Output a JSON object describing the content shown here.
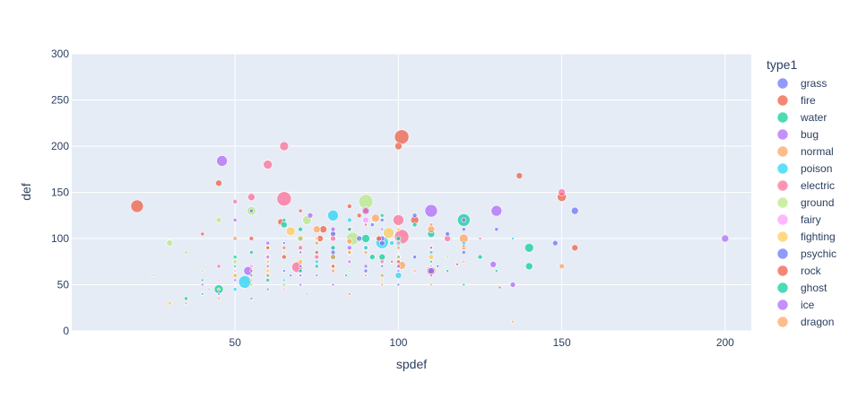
{
  "chart_data": {
    "type": "scatter",
    "xlabel": "spdef",
    "ylabel": "def",
    "xlim": [
      0,
      208
    ],
    "ylim": [
      0,
      300
    ],
    "x_ticks": [
      50,
      100,
      150,
      200
    ],
    "y_ticks": [
      0,
      50,
      100,
      150,
      200,
      250,
      300
    ],
    "grid": true,
    "legend_title": "type1",
    "legend_position": "right",
    "series": [
      {
        "name": "grass",
        "color": "#636efa",
        "points": [
          [
            55,
            130,
            4
          ],
          [
            80,
            105,
            6
          ],
          [
            90,
            130,
            9
          ],
          [
            105,
            125,
            5
          ],
          [
            130,
            110,
            4
          ],
          [
            154,
            130,
            8
          ],
          [
            65,
            65,
            3
          ],
          [
            70,
            85,
            3
          ],
          [
            85,
            75,
            5
          ],
          [
            95,
            95,
            6
          ],
          [
            100,
            80,
            4
          ],
          [
            110,
            65,
            7
          ],
          [
            115,
            105,
            5
          ],
          [
            60,
            80,
            3
          ],
          [
            75,
            95,
            4
          ],
          [
            120,
            85,
            4
          ],
          [
            88,
            100,
            6
          ],
          [
            50,
            55,
            3
          ],
          [
            42,
            45,
            2
          ],
          [
            67,
            60,
            3
          ],
          [
            72,
            40,
            2
          ],
          [
            95,
            70,
            3
          ],
          [
            112,
            70,
            3
          ],
          [
            92,
            115,
            4
          ]
        ]
      },
      {
        "name": "fire",
        "color": "#EF553B",
        "points": [
          [
            20,
            135,
            14
          ],
          [
            45,
            160,
            7
          ],
          [
            100,
            200,
            8
          ],
          [
            101,
            210,
            16
          ],
          [
            150,
            145,
            10
          ],
          [
            154,
            90,
            7
          ],
          [
            137,
            168,
            7
          ],
          [
            77,
            110,
            8
          ],
          [
            95,
            60,
            4
          ],
          [
            65,
            80,
            5
          ],
          [
            85,
            135,
            5
          ],
          [
            55,
            100,
            5
          ],
          [
            70,
            100,
            6
          ],
          [
            105,
            120,
            9
          ],
          [
            50,
            60,
            4
          ],
          [
            88,
            125,
            5
          ],
          [
            60,
            70,
            3
          ],
          [
            75,
            85,
            4
          ],
          [
            110,
            90,
            4
          ],
          [
            40,
            105,
            4
          ],
          [
            131,
            47,
            3
          ],
          [
            80,
            70,
            4
          ],
          [
            98,
            75,
            3
          ],
          [
            118,
            72,
            3
          ]
        ]
      },
      {
        "name": "water",
        "color": "#00cc96",
        "points": [
          [
            120,
            120,
            14
          ],
          [
            140,
            90,
            10
          ],
          [
            140,
            70,
            8
          ],
          [
            45,
            45,
            10
          ],
          [
            80,
            80,
            6
          ],
          [
            90,
            100,
            9
          ],
          [
            95,
            80,
            7
          ],
          [
            100,
            95,
            6
          ],
          [
            110,
            105,
            8
          ],
          [
            70,
            110,
            5
          ],
          [
            65,
            120,
            4
          ],
          [
            85,
            85,
            5
          ],
          [
            125,
            80,
            5
          ],
          [
            60,
            55,
            4
          ],
          [
            75,
            70,
            4
          ],
          [
            105,
            115,
            5
          ],
          [
            55,
            50,
            3
          ],
          [
            50,
            80,
            4
          ],
          [
            35,
            35,
            4
          ],
          [
            115,
            65,
            3
          ],
          [
            95,
            125,
            4
          ],
          [
            130,
            65,
            3
          ],
          [
            40,
            55,
            3
          ],
          [
            84,
            60,
            3
          ]
        ]
      },
      {
        "name": "bug",
        "color": "#ab63fa",
        "points": [
          [
            46,
            184,
            12
          ],
          [
            200,
            100,
            8
          ],
          [
            130,
            130,
            12
          ],
          [
            110,
            130,
            14
          ],
          [
            135,
            50,
            6
          ],
          [
            54,
            65,
            10
          ],
          [
            95,
            100,
            6
          ],
          [
            120,
            120,
            5
          ],
          [
            80,
            110,
            5
          ],
          [
            65,
            90,
            4
          ],
          [
            50,
            120,
            4
          ],
          [
            90,
            70,
            4
          ],
          [
            75,
            60,
            3
          ],
          [
            40,
            50,
            3
          ],
          [
            60,
            45,
            3
          ],
          [
            100,
            65,
            3
          ],
          [
            70,
            50,
            3
          ],
          [
            45,
            40,
            3
          ],
          [
            85,
            40,
            3
          ],
          [
            55,
            35,
            3
          ]
        ]
      },
      {
        "name": "normal",
        "color": "#FFA15A",
        "points": [
          [
            150,
            70,
            6
          ],
          [
            101,
            71,
            9
          ],
          [
            110,
            110,
            8
          ],
          [
            120,
            100,
            10
          ],
          [
            75,
            110,
            8
          ],
          [
            50,
            100,
            5
          ],
          [
            60,
            60,
            4
          ],
          [
            80,
            80,
            6
          ],
          [
            70,
            75,
            5
          ],
          [
            90,
            85,
            4
          ],
          [
            40,
            40,
            4
          ],
          [
            45,
            35,
            3
          ],
          [
            35,
            30,
            3
          ],
          [
            30,
            25,
            2
          ],
          [
            65,
            90,
            4
          ],
          [
            55,
            55,
            3
          ],
          [
            85,
            40,
            3
          ],
          [
            95,
            50,
            3
          ],
          [
            100,
            90,
            4
          ],
          [
            110,
            50,
            3
          ],
          [
            135,
            10,
            3
          ],
          [
            120,
            75,
            3
          ],
          [
            105,
            65,
            3
          ]
        ]
      },
      {
        "name": "poison",
        "color": "#19d3f3",
        "points": [
          [
            53,
            53,
            14
          ],
          [
            80,
            125,
            12
          ],
          [
            95,
            96,
            14
          ],
          [
            100,
            60,
            7
          ],
          [
            85,
            120,
            5
          ],
          [
            60,
            60,
            5
          ],
          [
            75,
            75,
            4
          ],
          [
            70,
            65,
            4
          ],
          [
            90,
            90,
            5
          ],
          [
            50,
            45,
            4
          ],
          [
            65,
            55,
            3
          ],
          [
            40,
            40,
            3
          ],
          [
            110,
            85,
            4
          ],
          [
            120,
            95,
            4
          ],
          [
            135,
            100,
            3
          ],
          [
            98,
            95,
            5
          ]
        ]
      },
      {
        "name": "electric",
        "color": "#FF6692",
        "points": [
          [
            65,
            143,
            16
          ],
          [
            100,
            120,
            12
          ],
          [
            101,
            102,
            16
          ],
          [
            65,
            200,
            10
          ],
          [
            60,
            180,
            10
          ],
          [
            69,
            69,
            12
          ],
          [
            150,
            150,
            8
          ],
          [
            110,
            65,
            10
          ],
          [
            90,
            130,
            7
          ],
          [
            55,
            145,
            8
          ],
          [
            85,
            110,
            5
          ],
          [
            70,
            90,
            5
          ],
          [
            80,
            100,
            6
          ],
          [
            75,
            80,
            5
          ],
          [
            50,
            140,
            5
          ],
          [
            115,
            100,
            7
          ],
          [
            60,
            80,
            5
          ],
          [
            45,
            70,
            4
          ],
          [
            95,
            75,
            4
          ],
          [
            125,
            100,
            3
          ]
        ]
      },
      {
        "name": "ground",
        "color": "#B6E880",
        "points": [
          [
            90,
            140,
            16
          ],
          [
            86,
            100,
            14
          ],
          [
            55,
            130,
            10
          ],
          [
            72,
            120,
            10
          ],
          [
            45,
            120,
            6
          ],
          [
            30,
            95,
            7
          ],
          [
            80,
            105,
            7
          ],
          [
            60,
            90,
            5
          ],
          [
            70,
            100,
            6
          ],
          [
            50,
            75,
            5
          ],
          [
            35,
            85,
            4
          ],
          [
            40,
            65,
            3
          ],
          [
            95,
            60,
            4
          ],
          [
            100,
            80,
            4
          ],
          [
            65,
            50,
            4
          ],
          [
            25,
            60,
            3
          ],
          [
            85,
            65,
            3
          ],
          [
            115,
            80,
            3
          ]
        ]
      },
      {
        "name": "fairy",
        "color": "#FF97FF",
        "points": [
          [
            90,
            120,
            7
          ],
          [
            60,
            80,
            6
          ],
          [
            80,
            90,
            5
          ],
          [
            55,
            70,
            4
          ],
          [
            70,
            60,
            4
          ],
          [
            85,
            75,
            4
          ],
          [
            100,
            95,
            4
          ],
          [
            45,
            55,
            3
          ],
          [
            50,
            65,
            3
          ],
          [
            65,
            45,
            3
          ],
          [
            110,
            70,
            3
          ]
        ]
      },
      {
        "name": "fighting",
        "color": "#FECB52",
        "points": [
          [
            67,
            108,
            10
          ],
          [
            97,
            106,
            12
          ],
          [
            110,
            80,
            6
          ],
          [
            90,
            90,
            6
          ],
          [
            80,
            70,
            5
          ],
          [
            70,
            75,
            5
          ],
          [
            60,
            65,
            4
          ],
          [
            75,
            95,
            4
          ],
          [
            85,
            85,
            4
          ],
          [
            50,
            60,
            4
          ],
          [
            65,
            85,
            3
          ],
          [
            55,
            50,
            3
          ],
          [
            95,
            55,
            3
          ],
          [
            100,
            110,
            4
          ],
          [
            30,
            30,
            4
          ],
          [
            45,
            45,
            3
          ]
        ]
      },
      {
        "name": "psychic",
        "color": "#636efa",
        "points": [
          [
            148,
            95,
            6
          ],
          [
            80,
            85,
            5
          ],
          [
            105,
            80,
            4
          ],
          [
            90,
            65,
            4
          ],
          [
            70,
            70,
            3
          ],
          [
            55,
            60,
            3
          ],
          [
            120,
            110,
            4
          ],
          [
            95,
            120,
            4
          ],
          [
            65,
            95,
            3
          ],
          [
            100,
            50,
            3
          ]
        ]
      },
      {
        "name": "rock",
        "color": "#EF553B",
        "points": [
          [
            76,
            100,
            7
          ],
          [
            94,
            100,
            6
          ],
          [
            64,
            118,
            7
          ],
          [
            60,
            90,
            4
          ],
          [
            85,
            85,
            5
          ],
          [
            100,
            75,
            4
          ],
          [
            70,
            130,
            4
          ],
          [
            55,
            65,
            3
          ],
          [
            110,
            60,
            3
          ],
          [
            90,
            115,
            3
          ],
          [
            120,
            92,
            3
          ]
        ]
      },
      {
        "name": "ghost",
        "color": "#00cc96",
        "points": [
          [
            92,
            80,
            6
          ],
          [
            65,
            115,
            7
          ],
          [
            80,
            90,
            5
          ],
          [
            100,
            100,
            5
          ],
          [
            55,
            85,
            4
          ],
          [
            70,
            65,
            4
          ],
          [
            110,
            75,
            3
          ],
          [
            120,
            50,
            3
          ],
          [
            85,
            110,
            4
          ],
          [
            50,
            70,
            3
          ]
        ]
      },
      {
        "name": "ice",
        "color": "#ab63fa",
        "points": [
          [
            73,
            125,
            6
          ],
          [
            129,
            72,
            7
          ],
          [
            85,
            90,
            5
          ],
          [
            100,
            70,
            4
          ],
          [
            60,
            95,
            4
          ],
          [
            70,
            60,
            3
          ],
          [
            110,
            90,
            3
          ],
          [
            95,
            110,
            3
          ],
          [
            80,
            50,
            3
          ]
        ]
      },
      {
        "name": "dragon",
        "color": "#FFA15A",
        "points": [
          [
            93,
            122,
            9
          ],
          [
            85,
            97,
            6
          ],
          [
            100,
            80,
            5
          ],
          [
            120,
            90,
            5
          ],
          [
            70,
            85,
            4
          ],
          [
            80,
            65,
            4
          ],
          [
            60,
            75,
            3
          ],
          [
            110,
            115,
            4
          ],
          [
            90,
            60,
            3
          ],
          [
            75,
            100,
            3
          ]
        ]
      }
    ]
  }
}
